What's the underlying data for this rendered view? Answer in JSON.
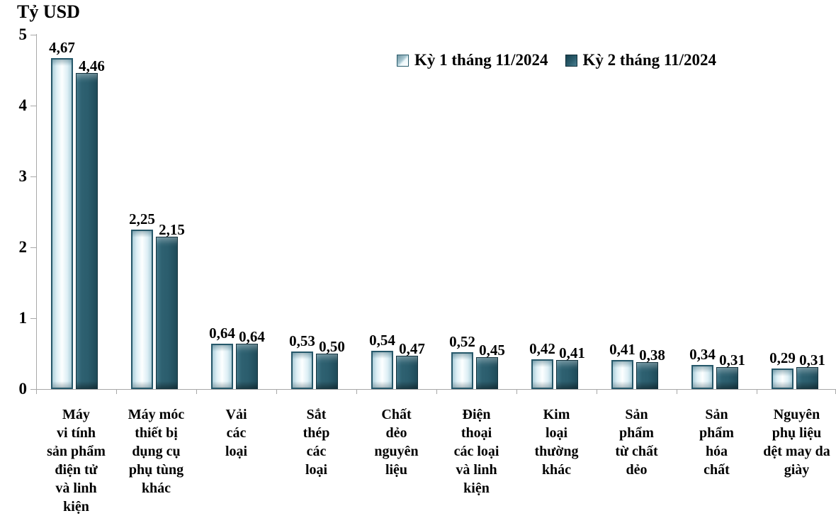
{
  "chart_data": {
    "type": "bar",
    "y_axis_title": "Tỷ USD",
    "y_axis": {
      "min": 0,
      "max": 5,
      "ticks": [
        "0",
        "1",
        "2",
        "3",
        "4",
        "5"
      ],
      "grid": false
    },
    "legend_position": "top",
    "legend": [
      {
        "label": "Kỳ 1 tháng 11/2024",
        "color": "#e8f4f9"
      },
      {
        "label": "Kỳ 2 tháng 11/2024",
        "color": "#2b5d6d"
      }
    ],
    "categories": [
      "Máy\nvi tính\nsản phẩm\nđiện tử\nvà linh\nkiện",
      "Máy móc\nthiết bị\ndụng cụ\nphụ tùng\nkhác",
      "Vải\ncác\nloại",
      "Sắt\nthép\ncác\nloại",
      "Chất\ndẻo\nnguyên\nliệu",
      "Điện\nthoại\ncác loại\nvà linh\nkiện",
      "Kim\nloại\nthường\nkhác",
      "Sản\nphẩm\ntừ chất\ndẻo",
      "Sản\nphẩm\nhóa\nchất",
      "Nguyên\nphụ liệu\ndệt may da\ngiày"
    ],
    "series": [
      {
        "name": "Kỳ 1 tháng 11/2024",
        "values": [
          4.67,
          2.25,
          0.64,
          0.53,
          0.54,
          0.52,
          0.42,
          0.41,
          0.34,
          0.29
        ],
        "labels": [
          "4,67",
          "2,25",
          "0,64",
          "0,53",
          "0,54",
          "0,52",
          "0,42",
          "0,41",
          "0,34",
          "0,29"
        ]
      },
      {
        "name": "Kỳ 2 tháng 11/2024",
        "values": [
          4.46,
          2.15,
          0.64,
          0.5,
          0.47,
          0.45,
          0.41,
          0.38,
          0.31,
          0.31
        ],
        "labels": [
          "4,46",
          "2,15",
          "0,64",
          "0,50",
          "0,47",
          "0,45",
          "0,41",
          "0,38",
          "0,31",
          "0,31"
        ]
      }
    ],
    "colors": {
      "series1_fill": "#e8f4f9",
      "series1_edge": "#26586a",
      "series2_fill": "#2b5d6d",
      "series2_edge": "#14333e",
      "axis": "#a8a8a8",
      "text": "#000000",
      "background": "#ffffff"
    }
  }
}
